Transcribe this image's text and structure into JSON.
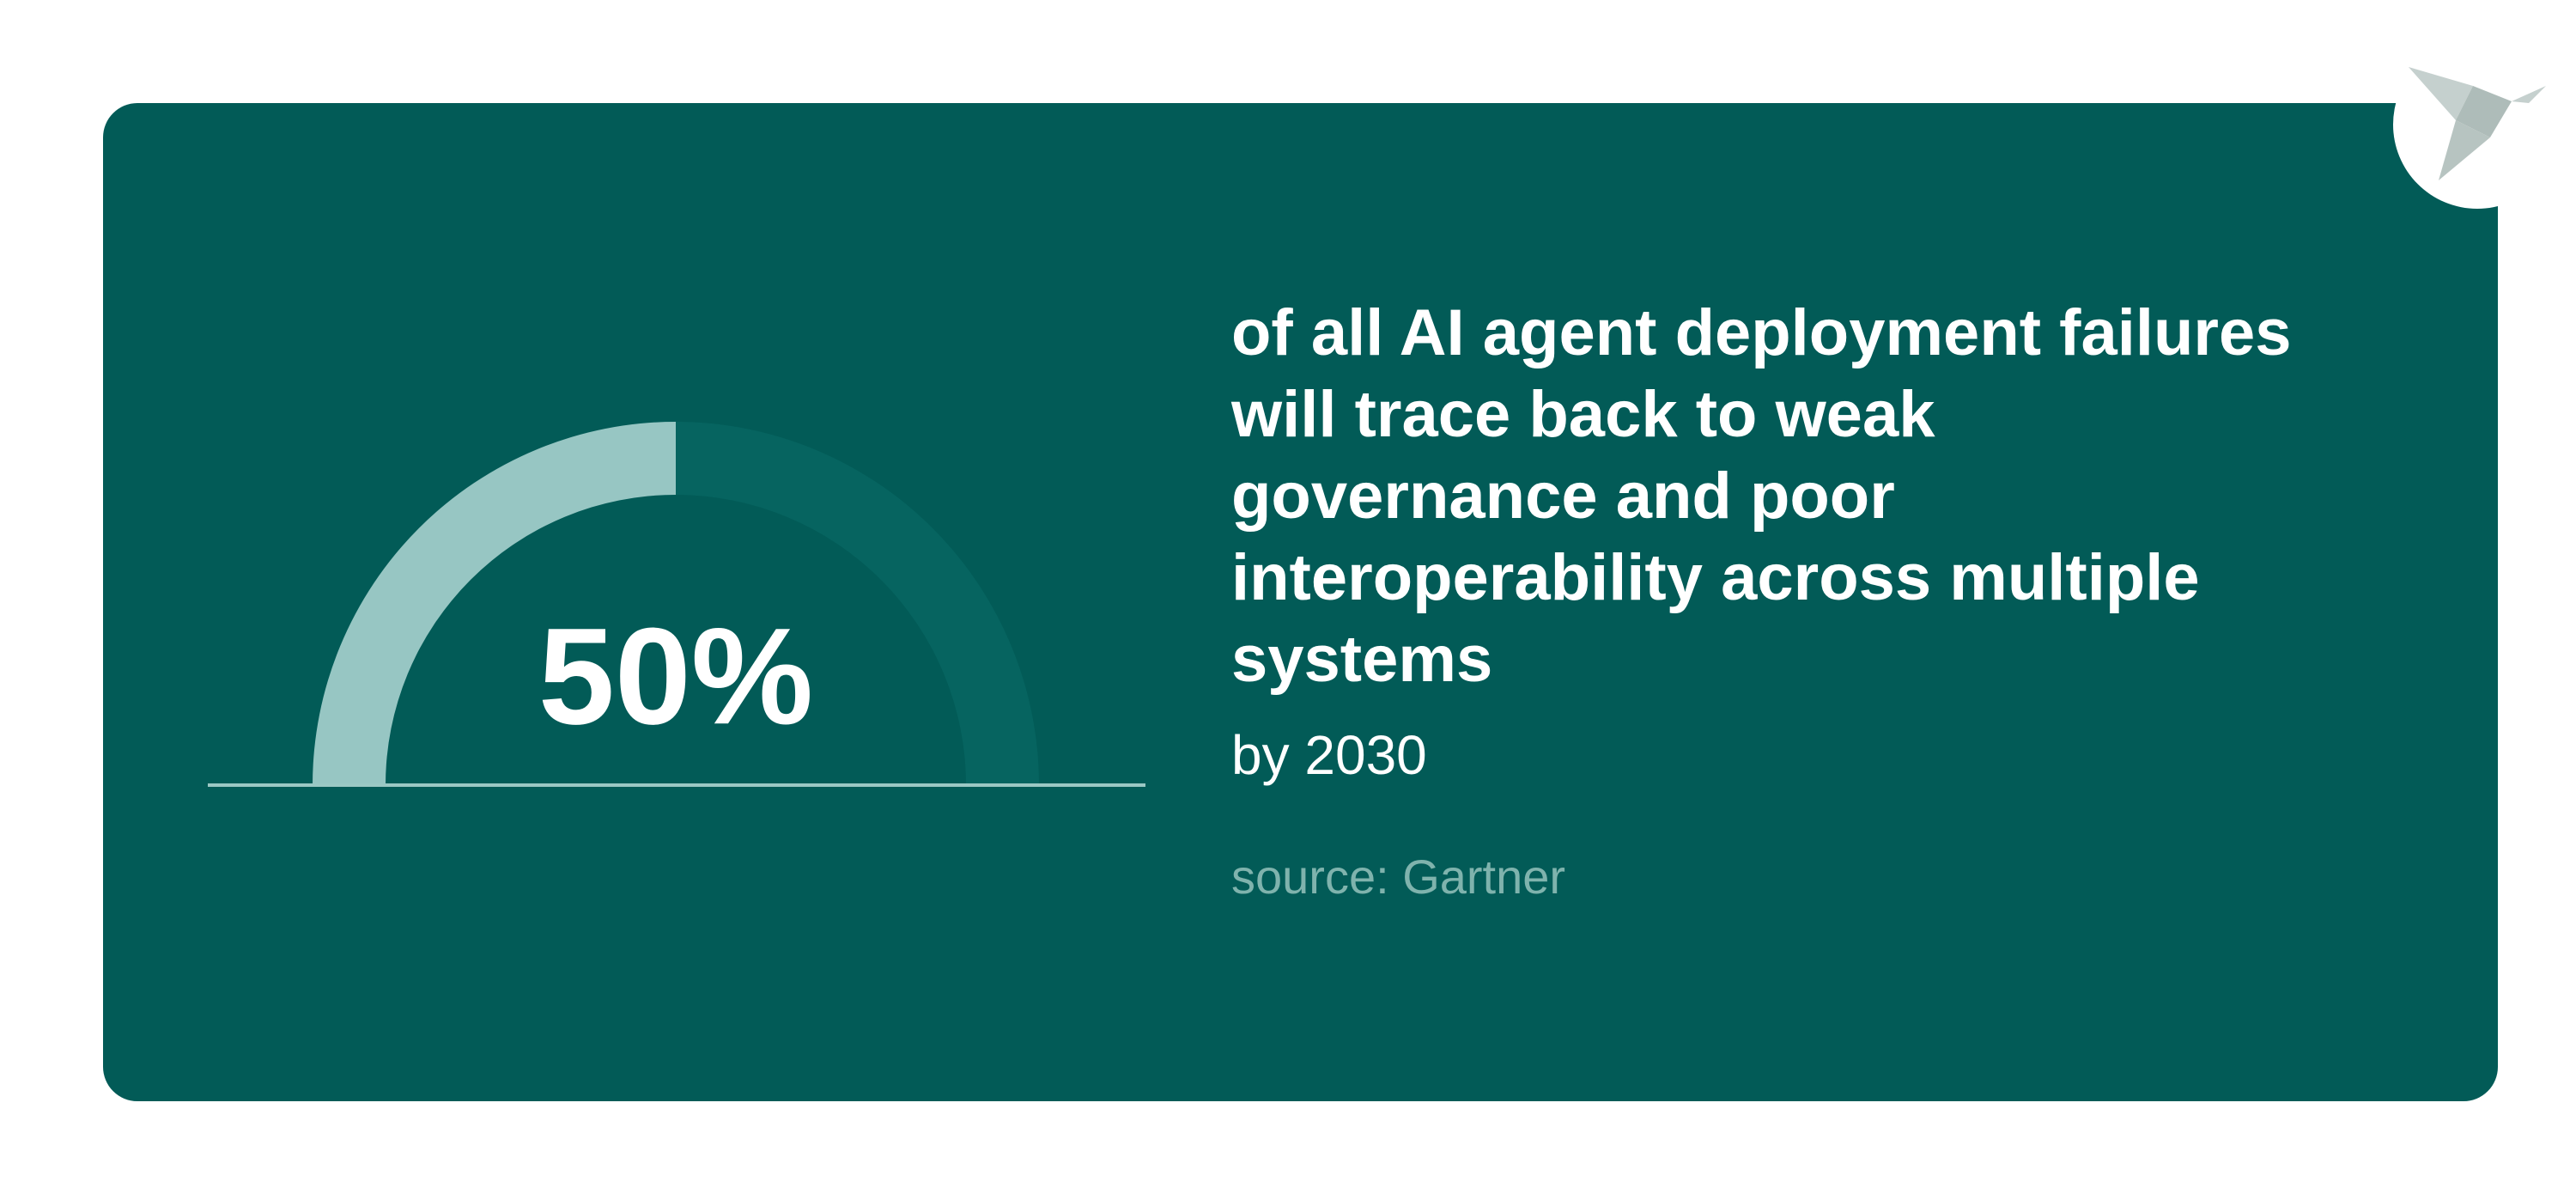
{
  "chart_data": {
    "type": "gauge",
    "value": 50,
    "value_label": "50%",
    "ylim": [
      0,
      100
    ],
    "color": "#97c6c3",
    "track_color": "#066460",
    "text": "of all AI agent deployment failures will trace back to weak governance and poor interoperability across multiple systems",
    "subtitle": "by 2030",
    "source": "source: Gartner"
  }
}
